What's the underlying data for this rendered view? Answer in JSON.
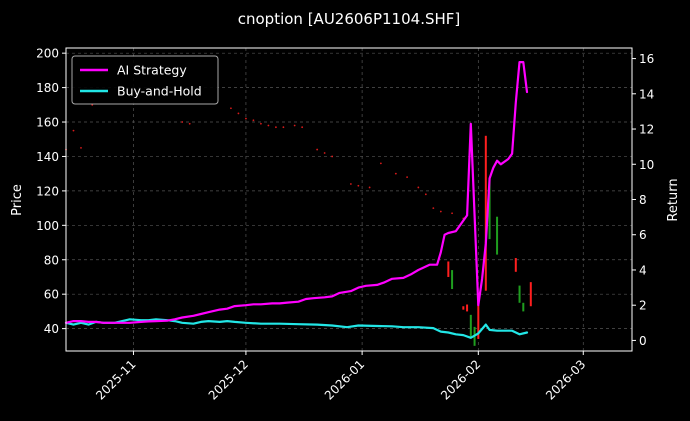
{
  "chart_data": {
    "type": "line",
    "title": "cnoption [AU2606P1104.SHF]",
    "ylabel_left": "Price",
    "ylabel_right": "Return",
    "xlim": [
      "2025-10-14",
      "2026-03-14"
    ],
    "ylim_left": [
      27,
      203
    ],
    "ylim_right": [
      -0.6,
      16.6
    ],
    "grid": true,
    "legend": "top-left",
    "x_ticks": [
      {
        "date": "2025-11-01",
        "label": "2025-11"
      },
      {
        "date": "2025-12-01",
        "label": "2025-12"
      },
      {
        "date": "2026-01-01",
        "label": "2026-01"
      },
      {
        "date": "2026-02-01",
        "label": "2026-02"
      },
      {
        "date": "2026-03-01",
        "label": "2026-03"
      }
    ],
    "y_ticks_left": [
      40,
      60,
      80,
      100,
      120,
      140,
      160,
      180,
      200
    ],
    "y_ticks_right": [
      0,
      2,
      4,
      6,
      8,
      10,
      12,
      14,
      16
    ],
    "colors": {
      "background": "#000000",
      "ai_strategy": "#ff00ff",
      "buy_and_hold": "#22e6e6",
      "candle_up": "#ff1f1f",
      "candle_down": "#1f9e1f",
      "grid": "#555555"
    },
    "series": [
      {
        "name": "AI Strategy",
        "key": "ai_strategy",
        "axis": "right",
        "points": [
          [
            "2025-10-14",
            1.0
          ],
          [
            "2025-10-16",
            1.1
          ],
          [
            "2025-10-18",
            1.1
          ],
          [
            "2025-10-20",
            1.05
          ],
          [
            "2025-10-22",
            1.05
          ],
          [
            "2025-10-24",
            1.0
          ],
          [
            "2025-10-27",
            1.0
          ],
          [
            "2025-10-29",
            1.0
          ],
          [
            "2025-10-31",
            1.0
          ],
          [
            "2025-11-03",
            1.05
          ],
          [
            "2025-11-05",
            1.08
          ],
          [
            "2025-11-07",
            1.1
          ],
          [
            "2025-11-10",
            1.12
          ],
          [
            "2025-11-12",
            1.2
          ],
          [
            "2025-11-14",
            1.3
          ],
          [
            "2025-11-17",
            1.4
          ],
          [
            "2025-11-19",
            1.5
          ],
          [
            "2025-11-21",
            1.6
          ],
          [
            "2025-11-24",
            1.75
          ],
          [
            "2025-11-26",
            1.8
          ],
          [
            "2025-11-28",
            1.95
          ],
          [
            "2025-12-01",
            2.0
          ],
          [
            "2025-12-03",
            2.05
          ],
          [
            "2025-12-05",
            2.05
          ],
          [
            "2025-12-08",
            2.1
          ],
          [
            "2025-12-10",
            2.1
          ],
          [
            "2025-12-12",
            2.15
          ],
          [
            "2025-12-15",
            2.2
          ],
          [
            "2025-12-17",
            2.35
          ],
          [
            "2025-12-19",
            2.4
          ],
          [
            "2025-12-22",
            2.45
          ],
          [
            "2025-12-24",
            2.5
          ],
          [
            "2025-12-26",
            2.7
          ],
          [
            "2025-12-29",
            2.8
          ],
          [
            "2025-12-31",
            3.0
          ],
          [
            "2026-01-02",
            3.1
          ],
          [
            "2026-01-05",
            3.15
          ],
          [
            "2026-01-07",
            3.3
          ],
          [
            "2026-01-09",
            3.5
          ],
          [
            "2026-01-12",
            3.55
          ],
          [
            "2026-01-14",
            3.75
          ],
          [
            "2026-01-16",
            4.0
          ],
          [
            "2026-01-19",
            4.3
          ],
          [
            "2026-01-21",
            4.3
          ],
          [
            "2026-01-22",
            5.0
          ],
          [
            "2026-01-23",
            6.0
          ],
          [
            "2026-01-24",
            6.1
          ],
          [
            "2026-01-26",
            6.2
          ],
          [
            "2026-01-27",
            6.5
          ],
          [
            "2026-01-28",
            6.8
          ],
          [
            "2026-01-29",
            7.1
          ],
          [
            "2026-01-30",
            12.3
          ],
          [
            "2026-02-01",
            2.0
          ],
          [
            "2026-02-02",
            3.5
          ],
          [
            "2026-02-03",
            5.5
          ],
          [
            "2026-02-04",
            9.2
          ],
          [
            "2026-02-05",
            9.8
          ],
          [
            "2026-02-06",
            10.2
          ],
          [
            "2026-02-07",
            10.0
          ],
          [
            "2026-02-09",
            10.3
          ],
          [
            "2026-02-10",
            10.6
          ],
          [
            "2026-02-11",
            13.5
          ],
          [
            "2026-02-12",
            15.8
          ],
          [
            "2026-02-13",
            15.8
          ],
          [
            "2026-02-14",
            14.1
          ]
        ]
      },
      {
        "name": "Buy-and-Hold",
        "key": "buy_and_hold",
        "axis": "right",
        "points": [
          [
            "2025-10-14",
            1.0
          ],
          [
            "2025-10-16",
            0.9
          ],
          [
            "2025-10-18",
            1.0
          ],
          [
            "2025-10-20",
            0.9
          ],
          [
            "2025-10-22",
            1.05
          ],
          [
            "2025-10-24",
            1.0
          ],
          [
            "2025-10-27",
            1.0
          ],
          [
            "2025-10-29",
            1.1
          ],
          [
            "2025-10-31",
            1.2
          ],
          [
            "2025-11-03",
            1.15
          ],
          [
            "2025-11-05",
            1.15
          ],
          [
            "2025-11-07",
            1.2
          ],
          [
            "2025-11-10",
            1.15
          ],
          [
            "2025-11-12",
            1.1
          ],
          [
            "2025-11-14",
            1.0
          ],
          [
            "2025-11-17",
            0.95
          ],
          [
            "2025-11-19",
            1.05
          ],
          [
            "2025-11-21",
            1.1
          ],
          [
            "2025-11-24",
            1.05
          ],
          [
            "2025-11-26",
            1.1
          ],
          [
            "2025-11-28",
            1.05
          ],
          [
            "2025-12-01",
            1.0
          ],
          [
            "2025-12-05",
            0.95
          ],
          [
            "2025-12-10",
            0.95
          ],
          [
            "2025-12-15",
            0.92
          ],
          [
            "2025-12-20",
            0.9
          ],
          [
            "2025-12-24",
            0.85
          ],
          [
            "2025-12-28",
            0.75
          ],
          [
            "2025-12-31",
            0.85
          ],
          [
            "2026-01-05",
            0.82
          ],
          [
            "2026-01-09",
            0.8
          ],
          [
            "2026-01-12",
            0.75
          ],
          [
            "2026-01-16",
            0.75
          ],
          [
            "2026-01-20",
            0.7
          ],
          [
            "2026-01-22",
            0.5
          ],
          [
            "2026-01-24",
            0.45
          ],
          [
            "2026-01-26",
            0.35
          ],
          [
            "2026-01-28",
            0.3
          ],
          [
            "2026-01-30",
            0.15
          ],
          [
            "2026-02-01",
            0.4
          ],
          [
            "2026-02-03",
            0.9
          ],
          [
            "2026-02-04",
            0.6
          ],
          [
            "2026-02-06",
            0.55
          ],
          [
            "2026-02-08",
            0.55
          ],
          [
            "2026-02-10",
            0.55
          ],
          [
            "2026-02-12",
            0.35
          ],
          [
            "2026-02-14",
            0.45
          ]
        ]
      }
    ],
    "price_dots": [
      [
        "2025-10-14",
        144
      ],
      [
        "2025-10-16",
        155
      ],
      [
        "2025-10-18",
        145
      ],
      [
        "2025-10-21",
        170
      ],
      [
        "2025-11-14",
        160
      ],
      [
        "2025-11-16",
        159
      ],
      [
        "2025-11-27",
        168
      ],
      [
        "2025-11-29",
        165
      ],
      [
        "2025-12-01",
        162
      ],
      [
        "2025-12-03",
        161
      ],
      [
        "2025-12-05",
        159
      ],
      [
        "2025-12-07",
        158
      ],
      [
        "2025-12-09",
        157
      ],
      [
        "2025-12-11",
        157
      ],
      [
        "2025-12-14",
        158
      ],
      [
        "2025-12-16",
        157
      ],
      [
        "2025-12-20",
        144
      ],
      [
        "2025-12-22",
        142
      ],
      [
        "2025-12-24",
        140
      ],
      [
        "2025-12-29",
        124
      ],
      [
        "2025-12-31",
        123
      ],
      [
        "2026-01-03",
        122
      ],
      [
        "2026-01-06",
        136
      ],
      [
        "2026-01-10",
        130
      ],
      [
        "2026-01-13",
        128
      ],
      [
        "2026-01-16",
        122
      ],
      [
        "2026-01-18",
        118
      ],
      [
        "2026-01-20",
        110
      ],
      [
        "2026-01-22",
        108
      ],
      [
        "2026-01-25",
        107
      ],
      [
        "2026-01-28",
        104
      ]
    ],
    "candles": [
      {
        "date": "2026-01-24",
        "low": 70,
        "high": 79,
        "dir": "up"
      },
      {
        "date": "2026-01-25",
        "low": 63,
        "high": 74,
        "dir": "down"
      },
      {
        "date": "2026-01-28",
        "low": 51,
        "high": 53,
        "dir": "up"
      },
      {
        "date": "2026-01-29",
        "low": 50,
        "high": 54,
        "dir": "up"
      },
      {
        "date": "2026-01-30",
        "low": 35,
        "high": 48,
        "dir": "down"
      },
      {
        "date": "2026-01-31",
        "low": 30,
        "high": 41,
        "dir": "down"
      },
      {
        "date": "2026-02-01",
        "low": 34,
        "high": 57,
        "dir": "up"
      },
      {
        "date": "2026-02-03",
        "low": 62,
        "high": 152,
        "dir": "up"
      },
      {
        "date": "2026-02-04",
        "low": 92,
        "high": 126,
        "dir": "down"
      },
      {
        "date": "2026-02-06",
        "low": 83,
        "high": 105,
        "dir": "down"
      },
      {
        "date": "2026-02-11",
        "low": 73,
        "high": 81,
        "dir": "up"
      },
      {
        "date": "2026-02-12",
        "low": 55,
        "high": 65,
        "dir": "down"
      },
      {
        "date": "2026-02-13",
        "low": 50,
        "high": 55,
        "dir": "down"
      },
      {
        "date": "2026-02-15",
        "low": 53,
        "high": 67,
        "dir": "up"
      }
    ]
  }
}
